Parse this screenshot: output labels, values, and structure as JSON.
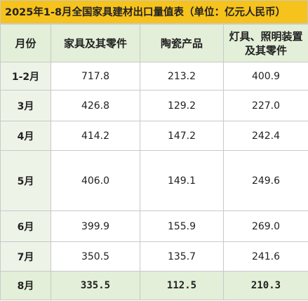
{
  "title": "2025年1-8月全国家具建材出口量值表（单位：亿元人民币）",
  "table": {
    "header": [
      "月份",
      "家具及其零件",
      "陶瓷产品",
      "灯具、照明装置及其零件"
    ],
    "rows": [
      [
        "1-2月",
        "717.8",
        "213.2",
        "400.9"
      ],
      [
        "3月",
        "426.8",
        "129.2",
        "227.0"
      ],
      [
        "4月",
        "414.2",
        "147.2",
        "242.4"
      ],
      [
        "5月",
        "406.0",
        "149.1",
        "249.6"
      ],
      [
        "6月",
        "399.9",
        "155.9",
        "269.0"
      ],
      [
        "7月",
        "350.5",
        "135.7",
        "241.6"
      ],
      [
        "8月",
        "335.5",
        "112.5",
        "210.3"
      ]
    ]
  }
}
